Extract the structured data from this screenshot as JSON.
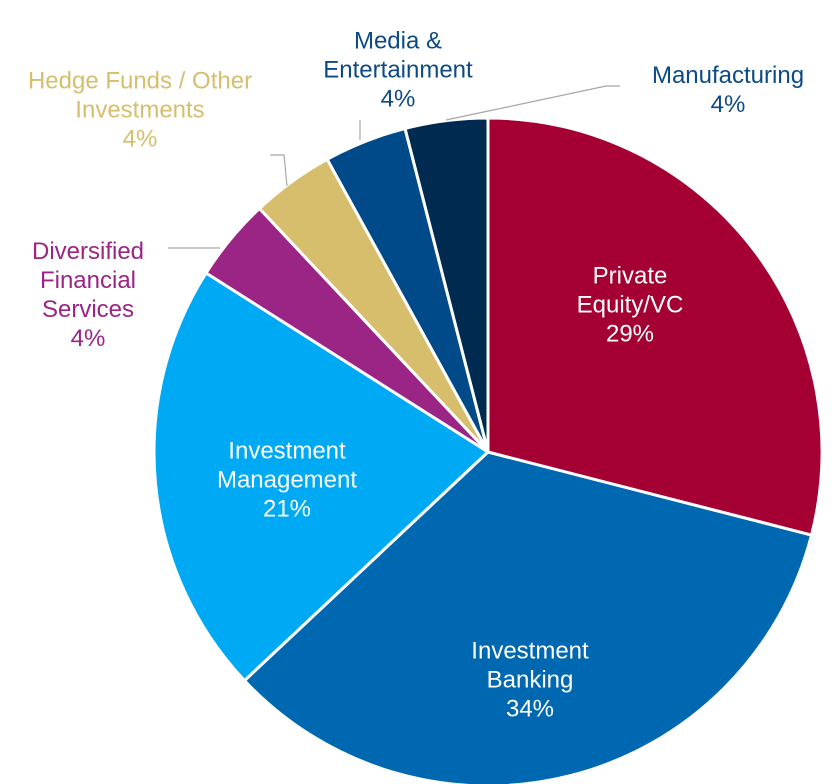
{
  "chart_data": {
    "type": "pie",
    "categories": [
      "Private Equity/VC",
      "Investment Banking",
      "Investment Management",
      "Diversified Financial Services",
      "Hedge Funds / Other Investments",
      "Media & Entertainment",
      "Manufacturing"
    ],
    "values": [
      29,
      34,
      21,
      4,
      4,
      4,
      4
    ],
    "value_labels": [
      "29%",
      "34%",
      "21%",
      "4%",
      "4%",
      "4%",
      "4%"
    ],
    "colors": [
      "#a50034",
      "#0068b0",
      "#00a9f4",
      "#9b2585",
      "#d6be6c",
      "#004a8a",
      "#002a4f"
    ]
  }
}
